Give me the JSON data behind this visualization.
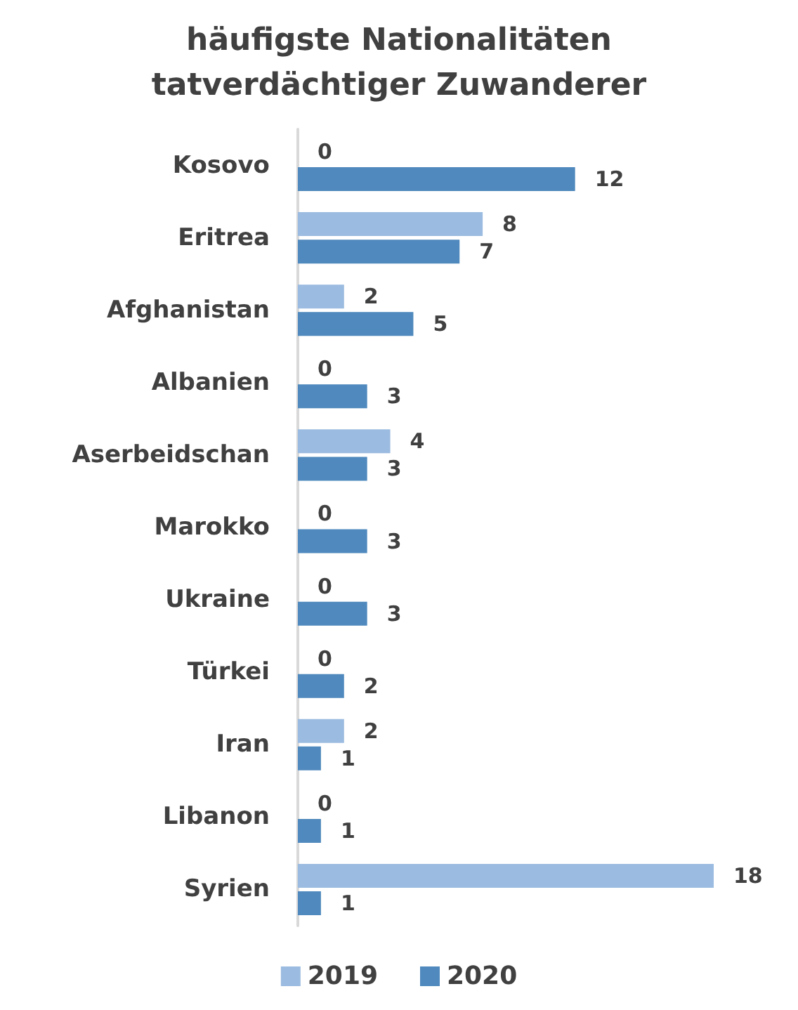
{
  "chart_data": {
    "type": "bar",
    "orientation": "horizontal",
    "title": "häufigste Nationalitäten\ntatverdächtiger Zuwanderer",
    "categories": [
      "Kosovo",
      "Eritrea",
      "Afghanistan",
      "Albanien",
      "Aserbeidschan",
      "Marokko",
      "Ukraine",
      "Türkei",
      "Iran",
      "Libanon",
      "Syrien"
    ],
    "series": [
      {
        "name": "2019",
        "color": "#9bbbe0",
        "values": [
          0,
          8,
          2,
          0,
          4,
          0,
          0,
          0,
          2,
          0,
          18
        ]
      },
      {
        "name": "2020",
        "color": "#4f89bd",
        "values": [
          12,
          7,
          5,
          3,
          3,
          3,
          3,
          2,
          1,
          1,
          1
        ]
      }
    ],
    "data_labels": true,
    "legend": "bottom"
  }
}
